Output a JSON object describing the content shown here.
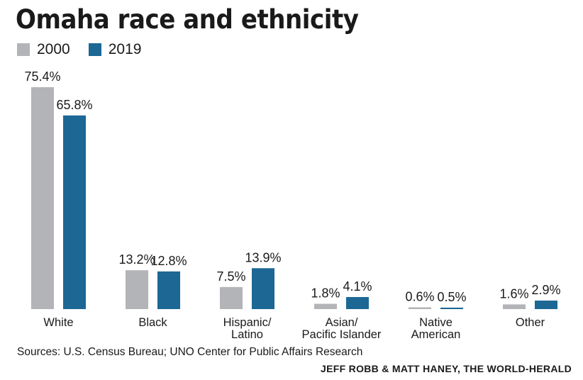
{
  "chart_data": {
    "type": "bar",
    "title": "Omaha race and ethnicity",
    "categories": [
      [
        "White"
      ],
      [
        "Black"
      ],
      [
        "Hispanic/",
        "Latino"
      ],
      [
        "Asian/",
        "Pacific Islander"
      ],
      [
        "Native",
        "American"
      ],
      [
        "Other"
      ]
    ],
    "series": [
      {
        "name": "2000",
        "color": "#b3b4b7",
        "values": [
          75.4,
          13.2,
          7.5,
          1.8,
          0.6,
          1.6
        ],
        "labels": [
          "75.4%",
          "13.2%",
          "7.5%",
          "1.8%",
          "0.6%",
          "1.6%"
        ]
      },
      {
        "name": "2019",
        "color": "#1c6794",
        "values": [
          65.8,
          12.8,
          13.9,
          4.1,
          0.5,
          2.9
        ],
        "labels": [
          "65.8%",
          "12.8%",
          "13.9%",
          "4.1%",
          "0.5%",
          "2.9%"
        ]
      }
    ],
    "xlabel": "",
    "ylabel": "",
    "ylim": [
      0,
      75.4
    ],
    "grid": false,
    "legend": "top-left"
  },
  "source": "Sources: U.S. Census Bureau; UNO Center for Public Affairs Research",
  "credit": "JEFF ROBB & MATT HANEY, THE WORLD-HERALD"
}
